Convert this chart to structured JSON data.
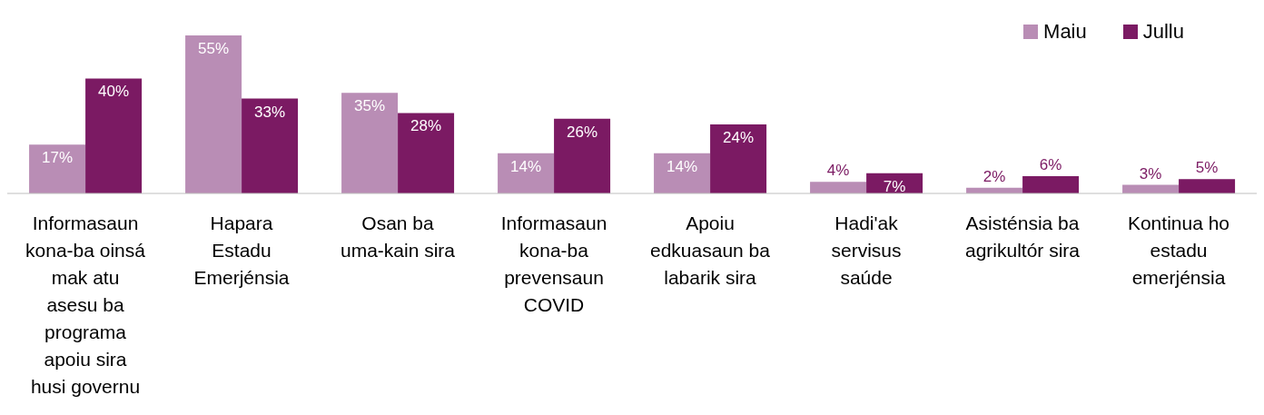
{
  "chart_data": {
    "type": "bar",
    "categories": [
      "Informasaun kona-ba oinsá mak atu asesu ba programa apoiu sira husi governu",
      "Hapara Estadu Emerjénsia",
      "Osan ba uma-kain sira",
      "Informasaun kona-ba prevensaun COVID",
      "Apoiu edkuasaun ba labarik sira",
      "Hadi'ak servisus saúde",
      "Asisténsia ba agrikultór sira",
      "Kontinua ho estadu emerjénsia"
    ],
    "series": [
      {
        "name": "Maiu",
        "color": "#b98db5",
        "values": [
          17,
          55,
          35,
          14,
          14,
          4,
          2,
          3
        ],
        "value_labels": [
          "17%",
          "55%",
          "35%",
          "14%",
          "14%",
          "4%",
          "2%",
          "3%"
        ]
      },
      {
        "name": "Jullu",
        "color": "#7b1a63",
        "values": [
          40,
          33,
          28,
          26,
          24,
          7,
          6,
          5
        ],
        "value_labels": [
          "40%",
          "33%",
          "28%",
          "26%",
          "24%",
          "7%",
          "6%",
          "5%"
        ]
      }
    ],
    "legend": "top right"
  }
}
